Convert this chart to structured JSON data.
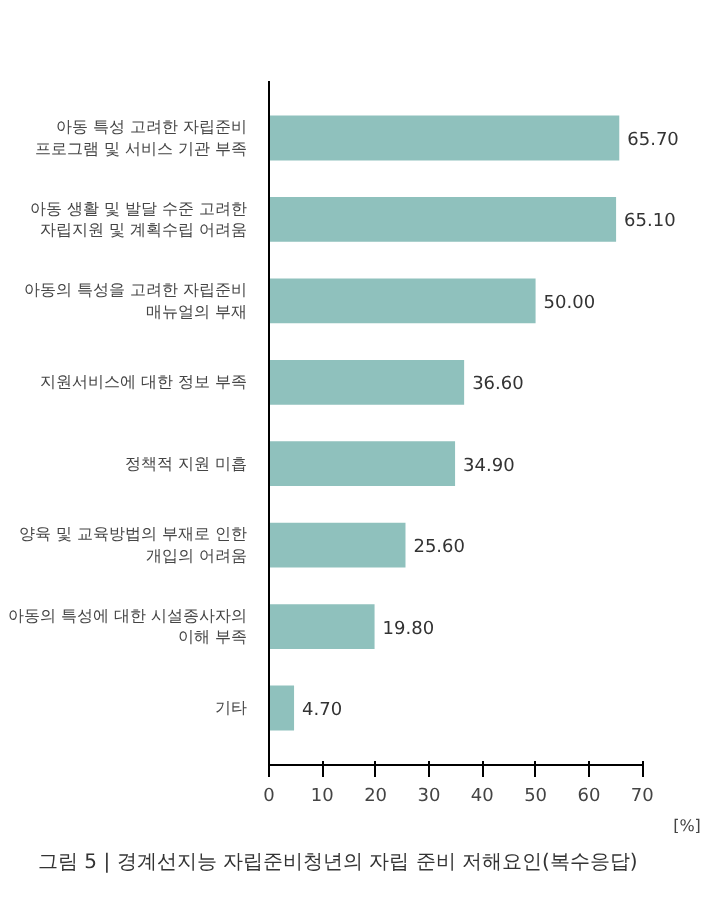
{
  "chart_data": {
    "type": "bar",
    "orientation": "horizontal",
    "title": "그림 5 | 경계선지능 자립준비청년의 자립 준비 저해요인(복수응답)",
    "xlabel": "[%]",
    "categories": [
      "아동 특성 고려한 자립준비\n프로그램 및 서비스 기관 부족",
      "아동 생활 및 발달 수준 고려한\n자립지원 및 계획수립 어려움",
      "아동의 특성을 고려한 자립준비\n매뉴얼의 부재",
      "지원서비스에 대한 정보 부족",
      "정책적 지원 미흡",
      "양육 및 교육방법의 부재로 인한\n개입의 어려움",
      "아동의 특성에 대한 시설종사자의\n이해 부족",
      "기타"
    ],
    "values": [
      65.7,
      65.1,
      50.0,
      36.6,
      34.9,
      25.6,
      19.8,
      4.7
    ],
    "value_labels": [
      "65.70",
      "65.10",
      "50.00",
      "36.60",
      "34.90",
      "25.60",
      "19.80",
      "4.70"
    ],
    "color": "#8fc1bd",
    "xlim": [
      0,
      70
    ],
    "xticks": [
      0,
      10,
      20,
      30,
      40,
      50,
      60,
      70
    ],
    "grid": false
  }
}
